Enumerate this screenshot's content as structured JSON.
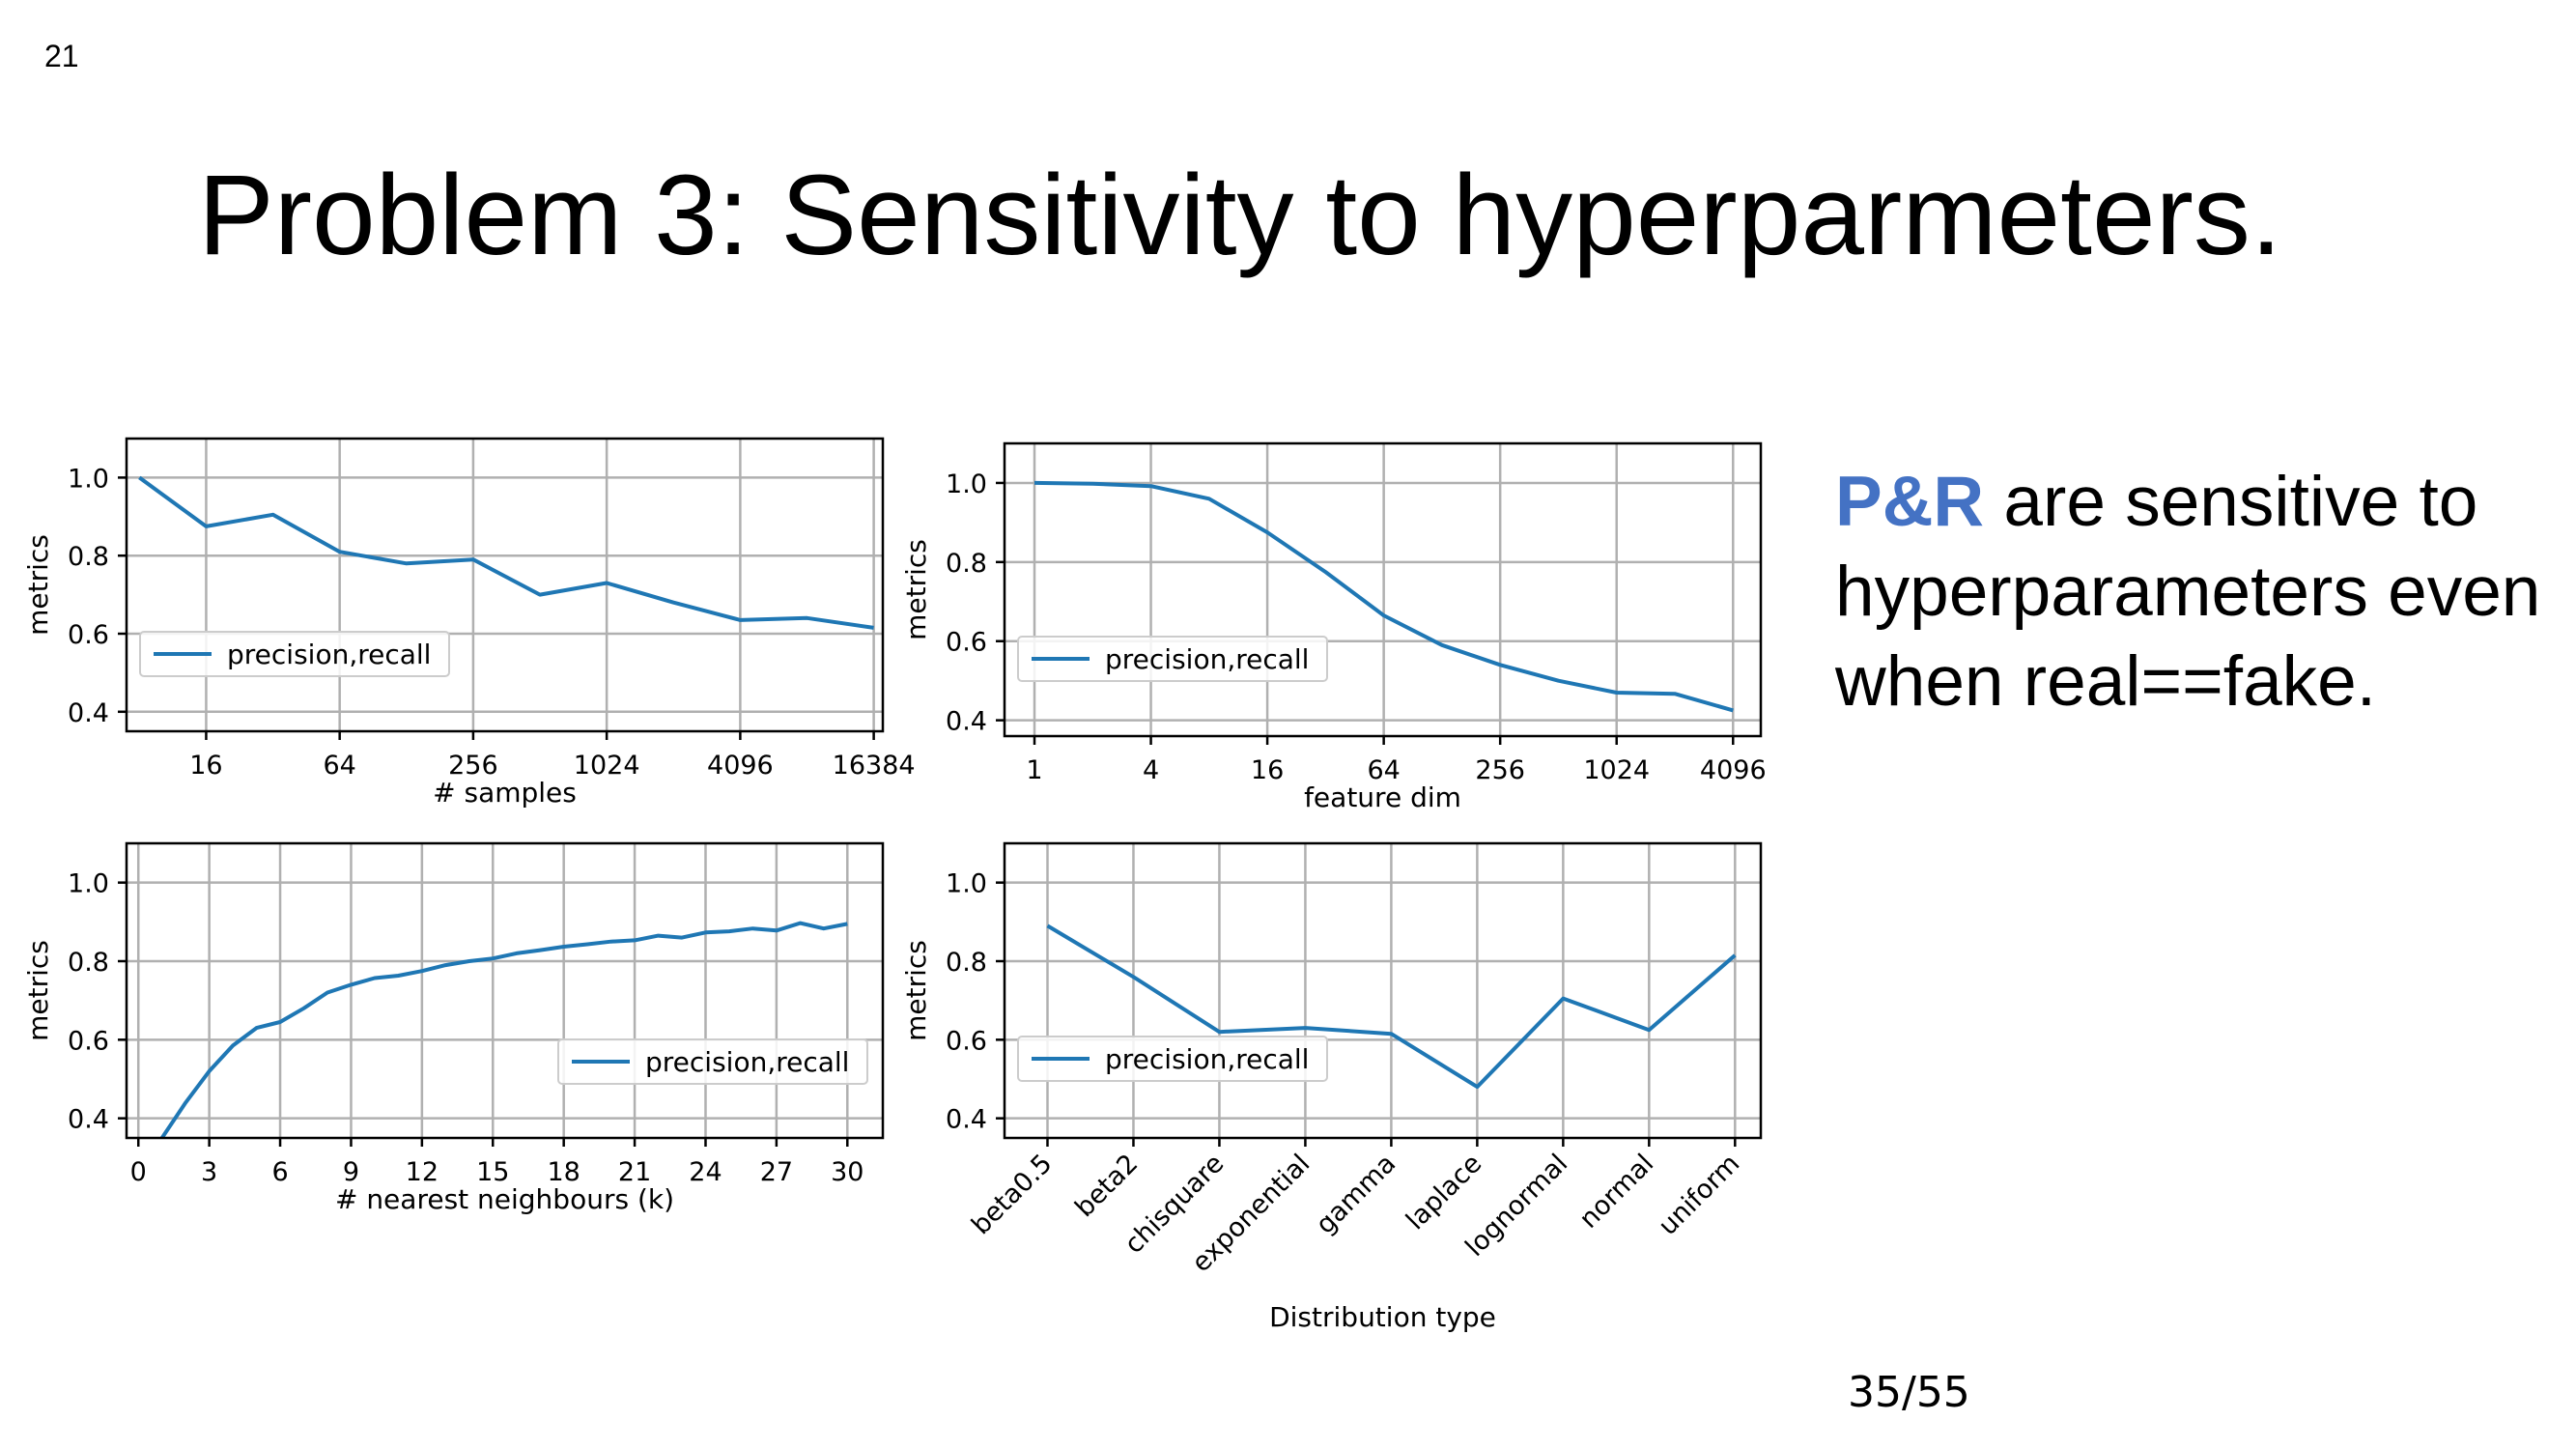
{
  "slide": {
    "number": "21",
    "title": "Problem 3: Sensitivity to hyperparmeters.",
    "side_text_highlight": "P&R",
    "side_text_rest": " are sensitive to hyperparameters even when real==fake.",
    "page_count": "35/55"
  },
  "colors": {
    "line": "#1f77b4",
    "highlight": "#4472C4",
    "grid": "#b0b0b0"
  },
  "chart_data": [
    {
      "type": "line",
      "xscale": "log2",
      "x": [
        8,
        16,
        32,
        64,
        128,
        256,
        512,
        1024,
        2048,
        4096,
        8192,
        16384
      ],
      "series": [
        {
          "name": "precision,recall",
          "values": [
            1.0,
            0.875,
            0.905,
            0.81,
            0.78,
            0.79,
            0.7,
            0.73,
            0.68,
            0.635,
            0.64,
            0.615
          ]
        }
      ],
      "xticks": [
        16,
        64,
        256,
        1024,
        4096,
        16384
      ],
      "xticklabels": [
        "16",
        "64",
        "256",
        "1024",
        "4096",
        "16384"
      ],
      "xlim": [
        7,
        18000
      ],
      "yticks": [
        0.4,
        0.6,
        0.8,
        1.0
      ],
      "yticklabels": [
        "0.4",
        "0.6",
        "0.8",
        "1.0"
      ],
      "ylim": [
        0.35,
        1.1
      ],
      "xlabel": "# samples",
      "ylabel": "metrics",
      "legend": "center-left",
      "grid": true
    },
    {
      "type": "line",
      "xscale": "log2",
      "x": [
        1,
        2,
        4,
        8,
        16,
        32,
        64,
        128,
        256,
        512,
        1024,
        2048,
        4096
      ],
      "series": [
        {
          "name": "precision,recall",
          "values": [
            1.0,
            0.998,
            0.992,
            0.96,
            0.875,
            0.775,
            0.665,
            0.59,
            0.54,
            0.5,
            0.47,
            0.467,
            0.425
          ]
        }
      ],
      "xticks": [
        1,
        4,
        16,
        64,
        256,
        1024,
        4096
      ],
      "xticklabels": [
        "1",
        "4",
        "16",
        "64",
        "256",
        "1024",
        "4096"
      ],
      "xlim": [
        0.7,
        5700
      ],
      "yticks": [
        0.4,
        0.6,
        0.8,
        1.0
      ],
      "yticklabels": [
        "0.4",
        "0.6",
        "0.8",
        "1.0"
      ],
      "ylim": [
        0.36,
        1.1
      ],
      "xlabel": "feature dim",
      "ylabel": "metrics",
      "legend": "center-left",
      "grid": true
    },
    {
      "type": "line",
      "xscale": "linear",
      "x": [
        1,
        2,
        3,
        4,
        5,
        6,
        7,
        8,
        9,
        10,
        11,
        12,
        13,
        14,
        15,
        16,
        17,
        18,
        19,
        20,
        21,
        22,
        23,
        24,
        25,
        26,
        27,
        28,
        29,
        30
      ],
      "series": [
        {
          "name": "precision,recall",
          "values": [
            0.35,
            0.44,
            0.52,
            0.585,
            0.63,
            0.645,
            0.68,
            0.72,
            0.74,
            0.757,
            0.763,
            0.775,
            0.79,
            0.8,
            0.807,
            0.82,
            0.828,
            0.837,
            0.843,
            0.85,
            0.853,
            0.865,
            0.86,
            0.873,
            0.876,
            0.883,
            0.878,
            0.897,
            0.883,
            0.895
          ]
        }
      ],
      "xticks": [
        0,
        3,
        6,
        9,
        12,
        15,
        18,
        21,
        24,
        27,
        30
      ],
      "xticklabels": [
        "0",
        "3",
        "6",
        "9",
        "12",
        "15",
        "18",
        "21",
        "24",
        "27",
        "30"
      ],
      "xlim": [
        -0.5,
        31.5
      ],
      "yticks": [
        0.4,
        0.6,
        0.8,
        1.0
      ],
      "yticklabels": [
        "0.4",
        "0.6",
        "0.8",
        "1.0"
      ],
      "ylim": [
        0.35,
        1.1
      ],
      "xlabel": "# nearest neighbours (k)",
      "ylabel": "metrics",
      "legend": "center-right",
      "grid": true
    },
    {
      "type": "line",
      "xscale": "category",
      "categories": [
        "beta0.5",
        "beta2",
        "chisquare",
        "exponential",
        "gamma",
        "laplace",
        "lognormal",
        "normal",
        "uniform"
      ],
      "series": [
        {
          "name": "precision,recall",
          "values": [
            0.89,
            0.76,
            0.62,
            0.63,
            0.615,
            0.48,
            0.705,
            0.625,
            0.815
          ]
        }
      ],
      "yticks": [
        0.4,
        0.6,
        0.8,
        1.0
      ],
      "yticklabels": [
        "0.4",
        "0.6",
        "0.8",
        "1.0"
      ],
      "ylim": [
        0.35,
        1.1
      ],
      "xlabel": "Distribution type",
      "ylabel": "metrics",
      "legend": "center-left",
      "grid": true
    }
  ]
}
